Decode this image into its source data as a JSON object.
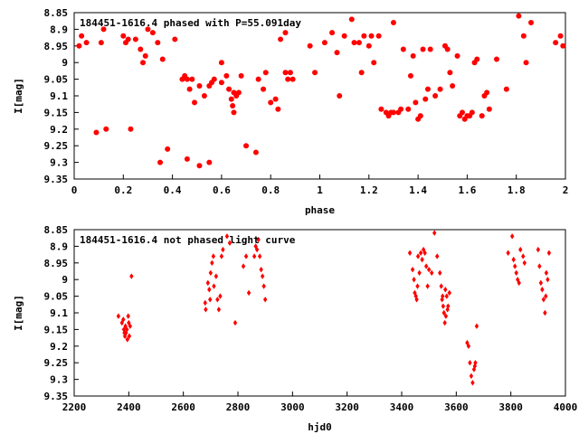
{
  "colors": {
    "marker": "#ff0000",
    "axis": "#000000",
    "background": "#ffffff"
  },
  "chart_data": [
    {
      "type": "scatter",
      "title": "184451-1616.4 phased with P=55.091day",
      "xlabel": "phase",
      "ylabel": "I[mag]",
      "xlim": [
        0,
        2
      ],
      "ylim": [
        9.35,
        8.85
      ],
      "y_inverted": true,
      "grid": false,
      "legend": "none",
      "marker": "filled-circle",
      "xticks": [
        0,
        0.2,
        0.4,
        0.6,
        0.8,
        1,
        1.2,
        1.4,
        1.6,
        1.8,
        2
      ],
      "xtick_labels": [
        "0",
        "0.2",
        "0.4",
        "0.6",
        "0.8",
        "1",
        "1.2",
        "1.4",
        "1.6",
        "1.8",
        "2"
      ],
      "yticks": [
        8.85,
        8.9,
        8.95,
        9,
        9.05,
        9.1,
        9.15,
        9.2,
        9.25,
        9.3,
        9.35
      ],
      "ytick_labels": [
        "8.85",
        "8.9",
        "8.95",
        "9",
        "9.05",
        "9.1",
        "9.15",
        "9.2",
        "9.25",
        "9.3",
        "9.35"
      ],
      "points": [
        [
          0.02,
          8.95
        ],
        [
          0.03,
          8.92
        ],
        [
          0.05,
          8.94
        ],
        [
          0.09,
          9.21
        ],
        [
          0.11,
          8.94
        ],
        [
          0.12,
          8.9
        ],
        [
          0.13,
          9.2
        ],
        [
          0.2,
          8.92
        ],
        [
          0.21,
          8.94
        ],
        [
          0.22,
          8.93
        ],
        [
          0.23,
          9.2
        ],
        [
          0.25,
          8.93
        ],
        [
          0.27,
          8.96
        ],
        [
          0.28,
          9.0
        ],
        [
          0.29,
          8.98
        ],
        [
          0.3,
          8.9
        ],
        [
          0.32,
          8.91
        ],
        [
          0.34,
          8.94
        ],
        [
          0.35,
          9.3
        ],
        [
          0.36,
          8.99
        ],
        [
          0.38,
          9.26
        ],
        [
          0.41,
          8.93
        ],
        [
          0.44,
          9.05
        ],
        [
          0.45,
          9.04
        ],
        [
          0.46,
          9.05
        ],
        [
          0.46,
          9.29
        ],
        [
          0.47,
          9.08
        ],
        [
          0.48,
          9.05
        ],
        [
          0.49,
          9.12
        ],
        [
          0.51,
          9.07
        ],
        [
          0.51,
          9.31
        ],
        [
          0.53,
          9.1
        ],
        [
          0.55,
          9.07
        ],
        [
          0.55,
          9.3
        ],
        [
          0.56,
          9.06
        ],
        [
          0.57,
          9.05
        ],
        [
          0.6,
          9.06
        ],
        [
          0.6,
          9.0
        ],
        [
          0.62,
          9.04
        ],
        [
          0.63,
          9.08
        ],
        [
          0.64,
          9.11
        ],
        [
          0.645,
          9.13
        ],
        [
          0.65,
          9.09
        ],
        [
          0.65,
          9.15
        ],
        [
          0.66,
          9.1
        ],
        [
          0.67,
          9.09
        ],
        [
          0.68,
          9.04
        ],
        [
          0.7,
          9.25
        ],
        [
          0.74,
          9.27
        ],
        [
          0.75,
          9.05
        ],
        [
          0.77,
          9.08
        ],
        [
          0.78,
          9.03
        ],
        [
          0.8,
          9.12
        ],
        [
          0.82,
          9.11
        ],
        [
          0.83,
          9.14
        ],
        [
          0.84,
          8.93
        ],
        [
          0.86,
          8.91
        ],
        [
          0.86,
          9.03
        ],
        [
          0.87,
          9.05
        ],
        [
          0.88,
          9.03
        ],
        [
          0.89,
          9.05
        ],
        [
          0.96,
          8.95
        ],
        [
          0.98,
          9.03
        ],
        [
          1.02,
          8.94
        ],
        [
          1.05,
          8.91
        ],
        [
          1.07,
          8.97
        ],
        [
          1.08,
          9.1
        ],
        [
          1.1,
          8.92
        ],
        [
          1.13,
          8.87
        ],
        [
          1.14,
          8.94
        ],
        [
          1.16,
          8.94
        ],
        [
          1.17,
          9.03
        ],
        [
          1.18,
          8.92
        ],
        [
          1.2,
          8.95
        ],
        [
          1.21,
          8.92
        ],
        [
          1.22,
          9.0
        ],
        [
          1.24,
          8.92
        ],
        [
          1.25,
          9.14
        ],
        [
          1.27,
          9.15
        ],
        [
          1.28,
          9.16
        ],
        [
          1.29,
          9.15
        ],
        [
          1.3,
          9.15
        ],
        [
          1.3,
          8.88
        ],
        [
          1.32,
          9.15
        ],
        [
          1.33,
          9.14
        ],
        [
          1.34,
          8.96
        ],
        [
          1.36,
          9.14
        ],
        [
          1.37,
          9.04
        ],
        [
          1.38,
          8.98
        ],
        [
          1.39,
          9.12
        ],
        [
          1.4,
          9.17
        ],
        [
          1.41,
          9.16
        ],
        [
          1.42,
          8.96
        ],
        [
          1.43,
          9.11
        ],
        [
          1.44,
          9.08
        ],
        [
          1.45,
          8.96
        ],
        [
          1.47,
          9.1
        ],
        [
          1.49,
          9.08
        ],
        [
          1.51,
          8.95
        ],
        [
          1.52,
          8.96
        ],
        [
          1.53,
          9.03
        ],
        [
          1.54,
          9.07
        ],
        [
          1.56,
          8.98
        ],
        [
          1.57,
          9.16
        ],
        [
          1.58,
          9.15
        ],
        [
          1.59,
          9.17
        ],
        [
          1.6,
          9.16
        ],
        [
          1.61,
          9.16
        ],
        [
          1.62,
          9.15
        ],
        [
          1.63,
          9.0
        ],
        [
          1.64,
          8.99
        ],
        [
          1.66,
          9.16
        ],
        [
          1.67,
          9.1
        ],
        [
          1.68,
          9.09
        ],
        [
          1.69,
          9.14
        ],
        [
          1.72,
          8.99
        ],
        [
          1.76,
          9.08
        ],
        [
          1.81,
          8.86
        ],
        [
          1.83,
          8.92
        ],
        [
          1.84,
          9.0
        ],
        [
          1.86,
          8.88
        ],
        [
          1.96,
          8.94
        ],
        [
          1.98,
          8.92
        ],
        [
          1.99,
          8.95
        ]
      ]
    },
    {
      "type": "scatter",
      "title": "184451-1616.4 not phased light curve",
      "xlabel": "hjd0",
      "ylabel": "I[mag]",
      "xlim": [
        2200,
        4000
      ],
      "ylim": [
        9.35,
        8.85
      ],
      "y_inverted": true,
      "grid": false,
      "legend": "none",
      "marker": "diamond",
      "xticks": [
        2200,
        2400,
        2600,
        2800,
        3000,
        3200,
        3400,
        3600,
        3800,
        4000
      ],
      "xtick_labels": [
        "2200",
        "2400",
        "2600",
        "2800",
        "3000",
        "3200",
        "3400",
        "3600",
        "3800",
        "4000"
      ],
      "yticks": [
        8.85,
        8.9,
        8.95,
        9,
        9.05,
        9.1,
        9.15,
        9.2,
        9.25,
        9.3,
        9.35
      ],
      "ytick_labels": [
        "8.85",
        "8.9",
        "8.95",
        "9",
        "9.05",
        "9.1",
        "9.15",
        "9.2",
        "9.25",
        "9.3",
        "9.35"
      ],
      "points": [
        [
          2362,
          9.11
        ],
        [
          2375,
          9.13
        ],
        [
          2380,
          9.12
        ],
        [
          2382,
          9.15
        ],
        [
          2384,
          9.16
        ],
        [
          2386,
          9.17
        ],
        [
          2388,
          9.14
        ],
        [
          2390,
          9.16
        ],
        [
          2393,
          9.15
        ],
        [
          2395,
          9.18
        ],
        [
          2398,
          9.11
        ],
        [
          2400,
          9.13
        ],
        [
          2402,
          9.17
        ],
        [
          2405,
          9.14
        ],
        [
          2410,
          8.99
        ],
        [
          2680,
          9.07
        ],
        [
          2682,
          9.09
        ],
        [
          2690,
          9.01
        ],
        [
          2695,
          9.03
        ],
        [
          2698,
          9.06
        ],
        [
          2700,
          8.98
        ],
        [
          2705,
          8.95
        ],
        [
          2710,
          8.93
        ],
        [
          2712,
          9.02
        ],
        [
          2720,
          8.99
        ],
        [
          2725,
          9.06
        ],
        [
          2730,
          9.09
        ],
        [
          2735,
          9.05
        ],
        [
          2740,
          8.93
        ],
        [
          2745,
          8.91
        ],
        [
          2760,
          8.87
        ],
        [
          2770,
          8.89
        ],
        [
          2790,
          9.13
        ],
        [
          2820,
          8.96
        ],
        [
          2830,
          8.93
        ],
        [
          2840,
          9.04
        ],
        [
          2860,
          8.93
        ],
        [
          2865,
          8.9
        ],
        [
          2870,
          8.91
        ],
        [
          2875,
          8.88
        ],
        [
          2880,
          8.93
        ],
        [
          2885,
          8.97
        ],
        [
          2890,
          8.99
        ],
        [
          2895,
          9.02
        ],
        [
          2900,
          9.06
        ],
        [
          3430,
          8.92
        ],
        [
          3440,
          8.97
        ],
        [
          3445,
          9.0
        ],
        [
          3448,
          9.04
        ],
        [
          3452,
          9.05
        ],
        [
          3455,
          9.06
        ],
        [
          3458,
          9.02
        ],
        [
          3460,
          8.93
        ],
        [
          3465,
          8.98
        ],
        [
          3470,
          8.92
        ],
        [
          3475,
          8.94
        ],
        [
          3480,
          8.91
        ],
        [
          3485,
          8.92
        ],
        [
          3490,
          8.96
        ],
        [
          3495,
          9.02
        ],
        [
          3500,
          8.97
        ],
        [
          3510,
          8.98
        ],
        [
          3520,
          8.86
        ],
        [
          3530,
          8.93
        ],
        [
          3540,
          8.98
        ],
        [
          3545,
          9.02
        ],
        [
          3548,
          9.06
        ],
        [
          3550,
          9.05
        ],
        [
          3552,
          9.08
        ],
        [
          3555,
          9.1
        ],
        [
          3558,
          9.13
        ],
        [
          3560,
          9.03
        ],
        [
          3562,
          9.11
        ],
        [
          3565,
          9.05
        ],
        [
          3568,
          9.09
        ],
        [
          3570,
          9.08
        ],
        [
          3575,
          9.04
        ],
        [
          3640,
          9.19
        ],
        [
          3645,
          9.2
        ],
        [
          3650,
          9.25
        ],
        [
          3655,
          9.29
        ],
        [
          3660,
          9.31
        ],
        [
          3665,
          9.27
        ],
        [
          3668,
          9.26
        ],
        [
          3670,
          9.25
        ],
        [
          3675,
          9.14
        ],
        [
          3790,
          8.92
        ],
        [
          3805,
          8.87
        ],
        [
          3810,
          8.94
        ],
        [
          3815,
          8.96
        ],
        [
          3820,
          8.98
        ],
        [
          3825,
          9.0
        ],
        [
          3830,
          9.01
        ],
        [
          3835,
          8.91
        ],
        [
          3845,
          8.93
        ],
        [
          3850,
          8.95
        ],
        [
          3900,
          8.91
        ],
        [
          3905,
          8.96
        ],
        [
          3910,
          9.01
        ],
        [
          3915,
          9.03
        ],
        [
          3920,
          9.06
        ],
        [
          3925,
          9.1
        ],
        [
          3928,
          9.05
        ],
        [
          3930,
          8.98
        ],
        [
          3935,
          9.0
        ],
        [
          3940,
          8.92
        ]
      ]
    }
  ]
}
